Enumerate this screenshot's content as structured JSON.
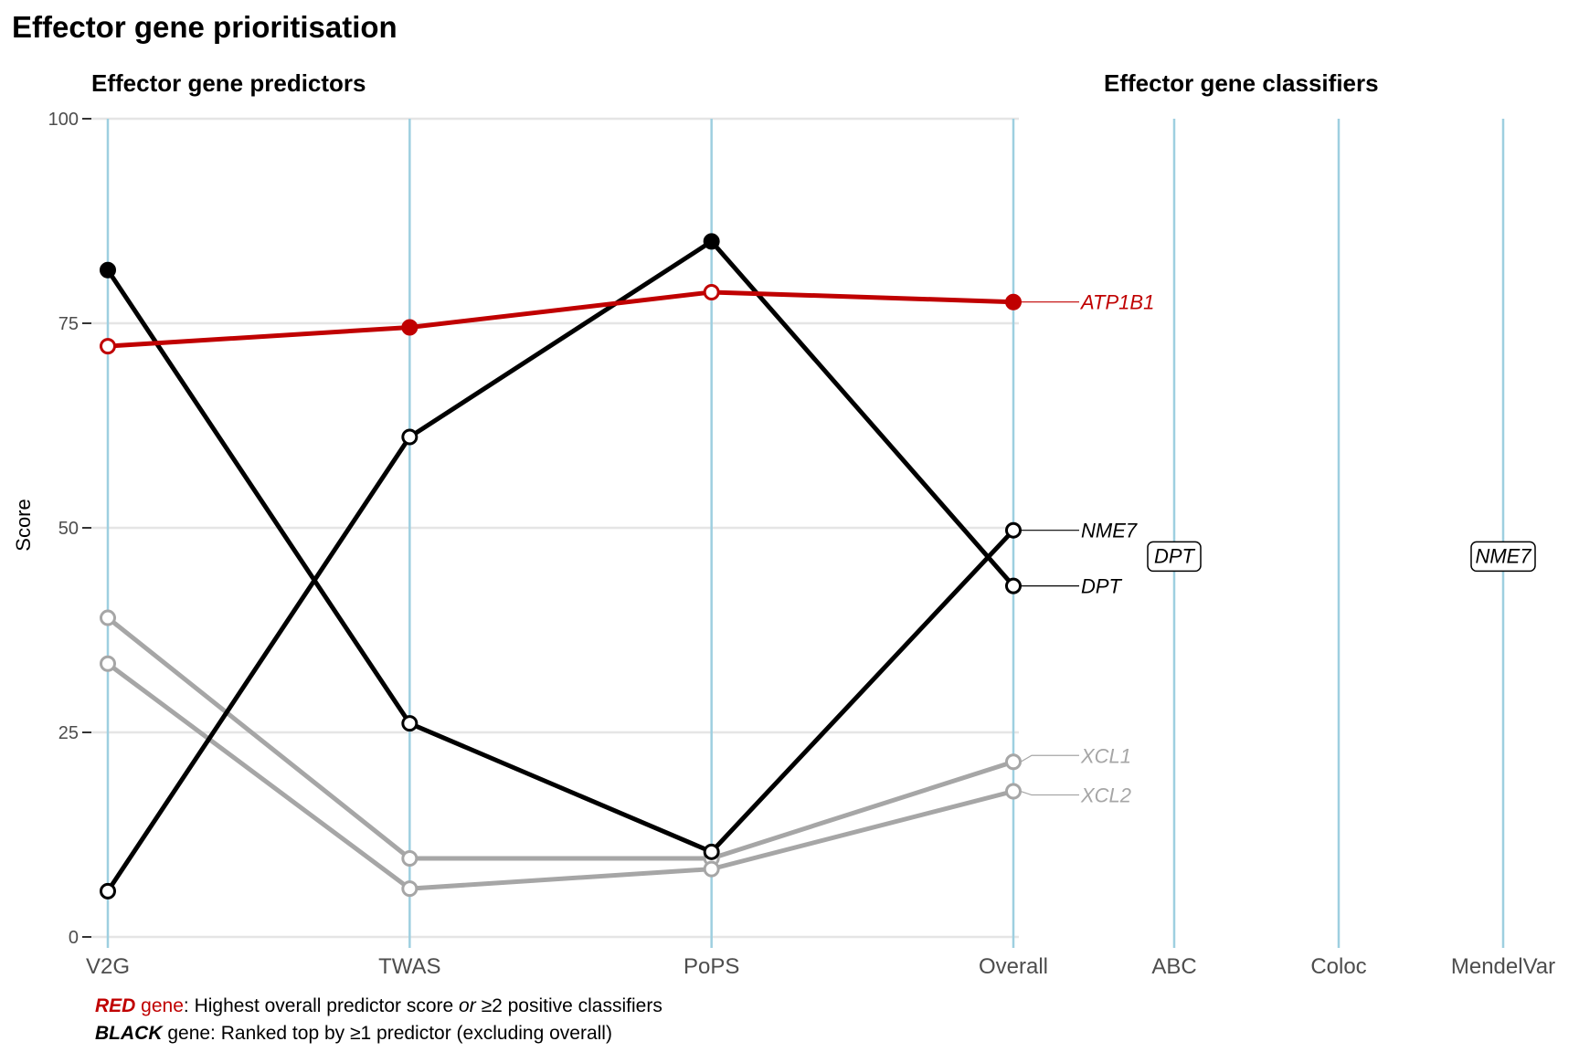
{
  "title": "Effector gene prioritisation",
  "colors": {
    "red": "#c00000",
    "black": "#000000",
    "grey": "#a6a6a6",
    "axis_line": "#9ecfe0",
    "grid": "#e5e5e5"
  },
  "chart_data": [
    {
      "type": "line",
      "title": "Effector gene predictors",
      "xlabel": "",
      "ylabel": "Score",
      "categories": [
        "V2G",
        "TWAS",
        "PoPS",
        "Overall"
      ],
      "ylim": [
        0,
        100
      ],
      "yticks": [
        0,
        25,
        50,
        75,
        100
      ],
      "grid": true,
      "series": [
        {
          "name": "ATP1B1",
          "group": "red",
          "values": [
            72.2,
            74.5,
            78.8,
            77.6
          ],
          "filled": [
            false,
            true,
            false,
            true
          ]
        },
        {
          "name": "NME7",
          "group": "black",
          "values": [
            81.5,
            26.1,
            10.4,
            49.7
          ],
          "filled": [
            true,
            false,
            false,
            false
          ]
        },
        {
          "name": "DPT",
          "group": "black",
          "values": [
            5.6,
            61.1,
            85.0,
            42.9
          ],
          "filled": [
            false,
            false,
            true,
            false
          ]
        },
        {
          "name": "XCL1",
          "group": "grey",
          "values": [
            39.0,
            9.6,
            9.6,
            21.4
          ],
          "filled": [
            false,
            false,
            false,
            false
          ]
        },
        {
          "name": "XCL2",
          "group": "grey",
          "values": [
            33.4,
            5.9,
            8.3,
            17.8
          ],
          "filled": [
            false,
            false,
            false,
            false
          ]
        }
      ]
    },
    {
      "type": "table",
      "title": "Effector gene classifiers",
      "categories": [
        "ABC",
        "Coloc",
        "MendelVar"
      ],
      "positives": [
        {
          "classifier": "ABC",
          "gene": "DPT",
          "score": 46.5
        },
        {
          "classifier": "MendelVar",
          "gene": "NME7",
          "score": 46.5
        }
      ]
    }
  ],
  "caption": {
    "line1": {
      "key": "RED",
      "key_suffix": " gene",
      "text_a": ": Highest overall predictor score ",
      "italic": "or",
      "text_b": " ≥2 positive classifiers"
    },
    "line2": {
      "key": "BLACK",
      "text": " gene: Ranked top by ≥1 predictor (excluding overall)"
    }
  }
}
